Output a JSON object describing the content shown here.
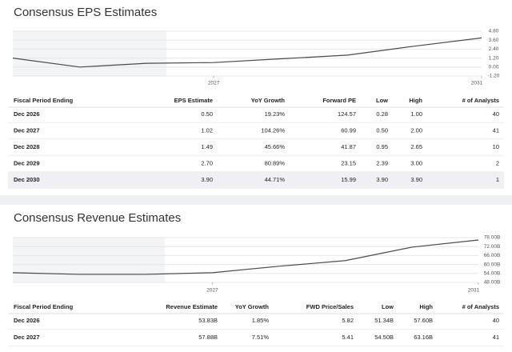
{
  "chart_data": [
    {
      "type": "line",
      "x": [
        2024,
        2025,
        2026,
        2027,
        2028,
        2029,
        2030,
        2031
      ],
      "series": [
        {
          "color": "#4a4a4a",
          "values": [
            1.2,
            0.0,
            0.5,
            0.6,
            1.1,
            1.6,
            2.8,
            3.9
          ]
        }
      ],
      "xlim": [
        2024,
        2031
      ],
      "xticks": [
        2027,
        2031
      ],
      "ylim": [
        -1.2,
        4.8
      ],
      "yticks": [
        {
          "value": 4.8,
          "label": "4.80"
        },
        {
          "value": 3.6,
          "label": "3.60"
        },
        {
          "value": 2.4,
          "label": "2.40"
        },
        {
          "value": 1.2,
          "label": "1.20"
        },
        {
          "value": 0,
          "label": "0.00"
        },
        {
          "value": -1.2,
          "label": "-1.20"
        }
      ],
      "grid": true
    },
    {
      "type": "line",
      "x": [
        2024,
        2025,
        2026,
        2027,
        2028,
        2029,
        2030,
        2031
      ],
      "series": [
        {
          "color": "#4a4a4a",
          "values": [
            54.5,
            53.4,
            53.4,
            54.5,
            58.8,
            62.6,
            71.6,
            76.4
          ]
        }
      ],
      "xlim": [
        2024,
        2031
      ],
      "xticks": [
        2027,
        2031
      ],
      "ylim": [
        48,
        78
      ],
      "yticks": [
        {
          "value": 78,
          "label": "78.00B"
        },
        {
          "value": 72,
          "label": "72.00B"
        },
        {
          "value": 66,
          "label": "66.00B"
        },
        {
          "value": 60,
          "label": "60.00B"
        },
        {
          "value": 54,
          "label": "54.00B"
        },
        {
          "value": 48,
          "label": "48.00B"
        }
      ],
      "grid": true
    }
  ],
  "sections": [
    {
      "title": "Consensus EPS Estimates",
      "table": {
        "headers": [
          "Fiscal Period Ending",
          "EPS Estimate",
          "YoY Growth",
          "Forward PE",
          "Low",
          "High",
          "# of Analysts"
        ],
        "rows": [
          [
            "Dec 2026",
            "0.50",
            "19.23%",
            "124.57",
            "0.28",
            "1.00",
            "40"
          ],
          [
            "Dec 2027",
            "1.02",
            "104.26%",
            "60.99",
            "0.50",
            "2.00",
            "41"
          ],
          [
            "Dec 2028",
            "1.49",
            "45.66%",
            "41.87",
            "0.95",
            "2.65",
            "10"
          ],
          [
            "Dec 2029",
            "2.70",
            "80.89%",
            "23.15",
            "2.39",
            "3.00",
            "2"
          ],
          [
            "Dec 2030",
            "3.90",
            "44.71%",
            "15.99",
            "3.90",
            "3.90",
            "1"
          ]
        ]
      }
    },
    {
      "title": "Consensus Revenue Estimates",
      "table": {
        "headers": [
          "Fiscal Period Ending",
          "Revenue Estimate",
          "YoY Growth",
          "FWD Price/Sales",
          "Low",
          "High",
          "# of Analysts"
        ],
        "rows": [
          [
            "Dec 2026",
            "53.83B",
            "1.85%",
            "5.82",
            "51.34B",
            "57.60B",
            "40"
          ],
          [
            "Dec 2027",
            "57.88B",
            "7.51%",
            "5.41",
            "54.50B",
            "63.16B",
            "41"
          ]
        ]
      }
    }
  ]
}
